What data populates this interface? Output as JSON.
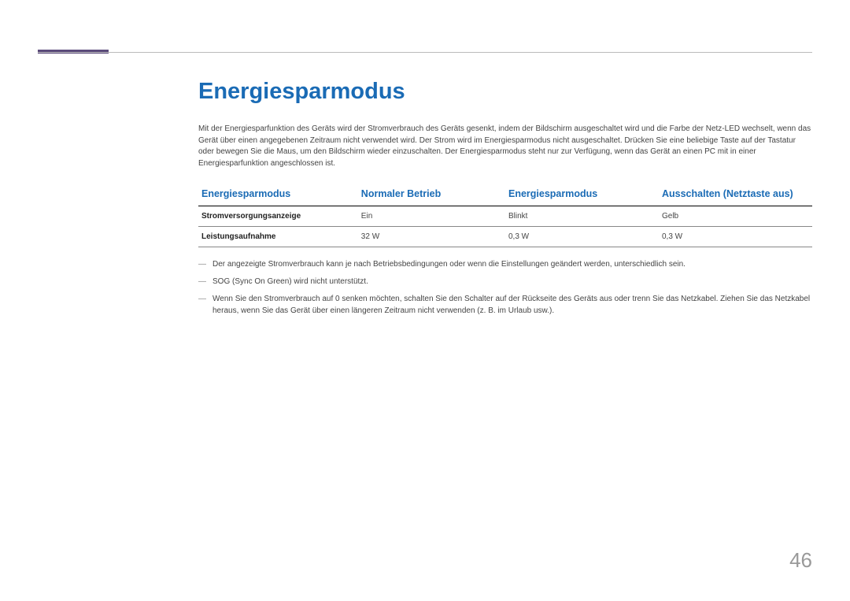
{
  "pageTitle": "Energiesparmodus",
  "intro": "Mit der Energiesparfunktion des Geräts wird der Stromverbrauch des Geräts gesenkt, indem der Bildschirm ausgeschaltet wird und die Farbe der Netz-LED wechselt, wenn das Gerät über einen angegebenen Zeitraum nicht verwendet wird. Der Strom wird im Energiesparmodus nicht ausgeschaltet. Drücken Sie eine beliebige Taste auf der Tastatur oder bewegen Sie die Maus, um den Bildschirm wieder einzuschalten. Der Energiesparmodus steht nur zur Verfügung, wenn das Gerät an einen PC mit in einer Energiesparfunktion angeschlossen ist.",
  "table": {
    "headers": [
      "Energiesparmodus",
      "Normaler Betrieb",
      "Energiesparmodus",
      "Ausschalten (Netztaste aus)"
    ],
    "rows": [
      {
        "label": "Stromversorgungsanzeige",
        "cells": [
          "Ein",
          "Blinkt",
          "Gelb"
        ]
      },
      {
        "label": "Leistungsaufnahme",
        "cells": [
          "32 W",
          "0,3 W",
          "0,3 W"
        ]
      }
    ],
    "colWidths": [
      "26%",
      "24%",
      "25%",
      "25%"
    ]
  },
  "notes": [
    "Der angezeigte Stromverbrauch kann je nach Betriebsbedingungen oder wenn die Einstellungen geändert werden, unterschiedlich sein.",
    "SOG (Sync On Green) wird nicht unterstützt.",
    "Wenn Sie den Stromverbrauch auf 0 senken möchten, schalten Sie den Schalter auf der Rückseite des Geräts aus oder trenn Sie das Netzkabel. Ziehen Sie das Netzkabel heraus, wenn Sie das Gerät über einen längeren Zeitraum nicht verwenden (z. B. im Urlaub usw.)."
  ],
  "pageNumber": "46",
  "colors": {
    "accent": "#5a4a7a",
    "heading": "#1a6bb5",
    "text": "#444",
    "pageNum": "#999"
  }
}
